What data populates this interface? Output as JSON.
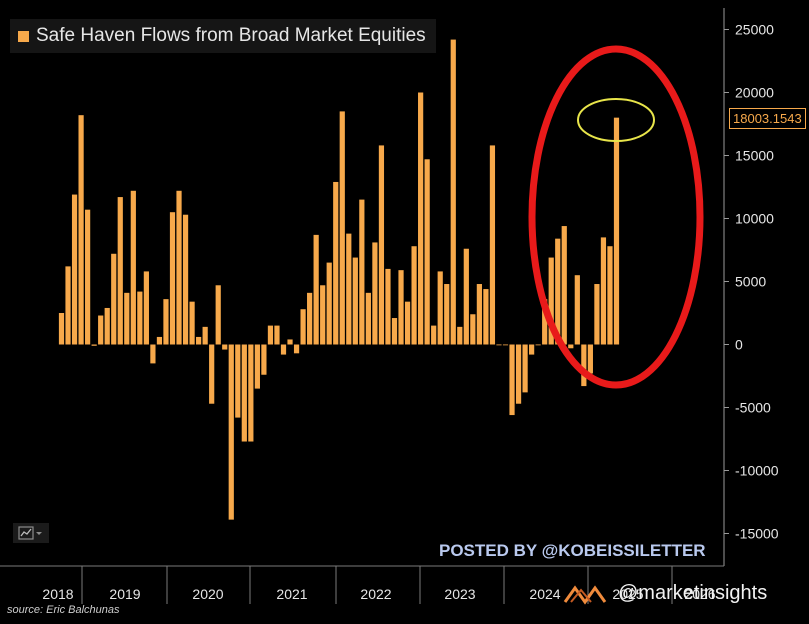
{
  "chart_data": {
    "type": "bar",
    "title": "Safe Haven Flows from Broad Market Equities",
    "source": "source: Eric Balchunas",
    "ylim": [
      -15000,
      25000
    ],
    "y_ticks": [
      25000,
      20000,
      15000,
      10000,
      5000,
      0,
      -5000,
      -10000,
      -15000
    ],
    "y_tick_labels": [
      "25000",
      "20000",
      "15000",
      "10000",
      "5000",
      "0",
      "-5000",
      "-10000",
      "-15000"
    ],
    "year_labels": [
      "2018",
      "2019",
      "2020",
      "2021",
      "2022",
      "2023",
      "2024",
      "2025",
      "2026"
    ],
    "last_value_label": "18003.1543",
    "grid": false,
    "legend_placement": "top-left",
    "series": [
      {
        "values": [
          2500,
          6200,
          11900,
          18200,
          10700,
          -100,
          2300,
          2900,
          7200,
          11700,
          4100,
          12200,
          4200,
          5800,
          -1500,
          600,
          3600,
          10500,
          12200,
          10300,
          3400,
          600,
          1400,
          -4700,
          4700,
          -400,
          -13900,
          -5800,
          -7700,
          -7700,
          -3500,
          -2400,
          1500,
          1500,
          -800,
          400,
          -700,
          2800,
          4100,
          8700,
          4700,
          6500,
          12900,
          18500,
          8800,
          6900,
          11500,
          4100,
          8100,
          15800,
          6000,
          2100,
          5900,
          3400,
          7800,
          20000,
          14700,
          1500,
          5800,
          4800,
          24200,
          1400,
          7600,
          2400,
          4800,
          4400,
          15800,
          0,
          0,
          -5600,
          -4700,
          -3800,
          -800,
          0,
          3600,
          6900,
          8400,
          9400,
          -300,
          5500,
          -3300,
          -2300,
          4800,
          8500,
          7800,
          18003
        ]
      }
    ],
    "colors": {
      "bar": "#f7a94b",
      "highlight_oval_red": "#e81a1a",
      "highlight_oval_yellow": "#e8e54a"
    }
  },
  "annotations": {
    "posted_by": "POSTED BY @KOBEISSILETTER",
    "watermark": "@marketinsights"
  },
  "icons": {
    "chart_type": "line-chart-icon",
    "dropdown": "chevron-down-icon",
    "logo": "market-insights-logo-icon"
  }
}
